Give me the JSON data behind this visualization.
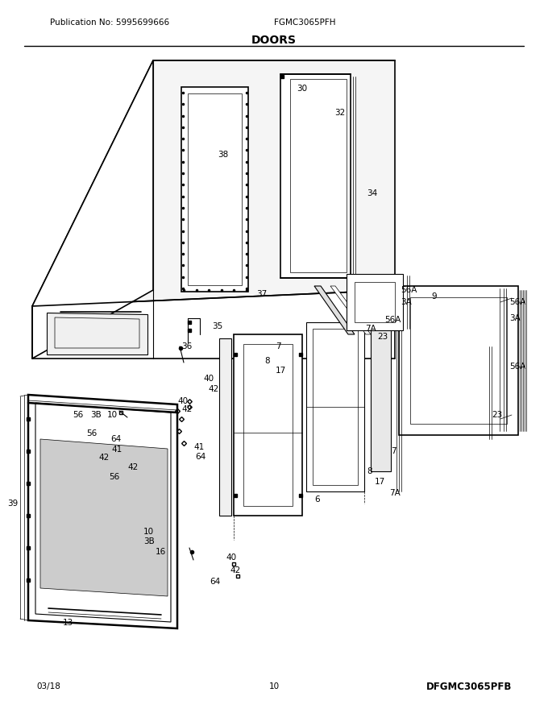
{
  "title": "DOORS",
  "pub_no": "Publication No: 5995699666",
  "model": "FGMC3065PFH",
  "footer_left": "03/18",
  "footer_center": "10",
  "footer_right": "DFGMC3065PFB",
  "bg_color": "#ffffff",
  "line_color": "#000000"
}
